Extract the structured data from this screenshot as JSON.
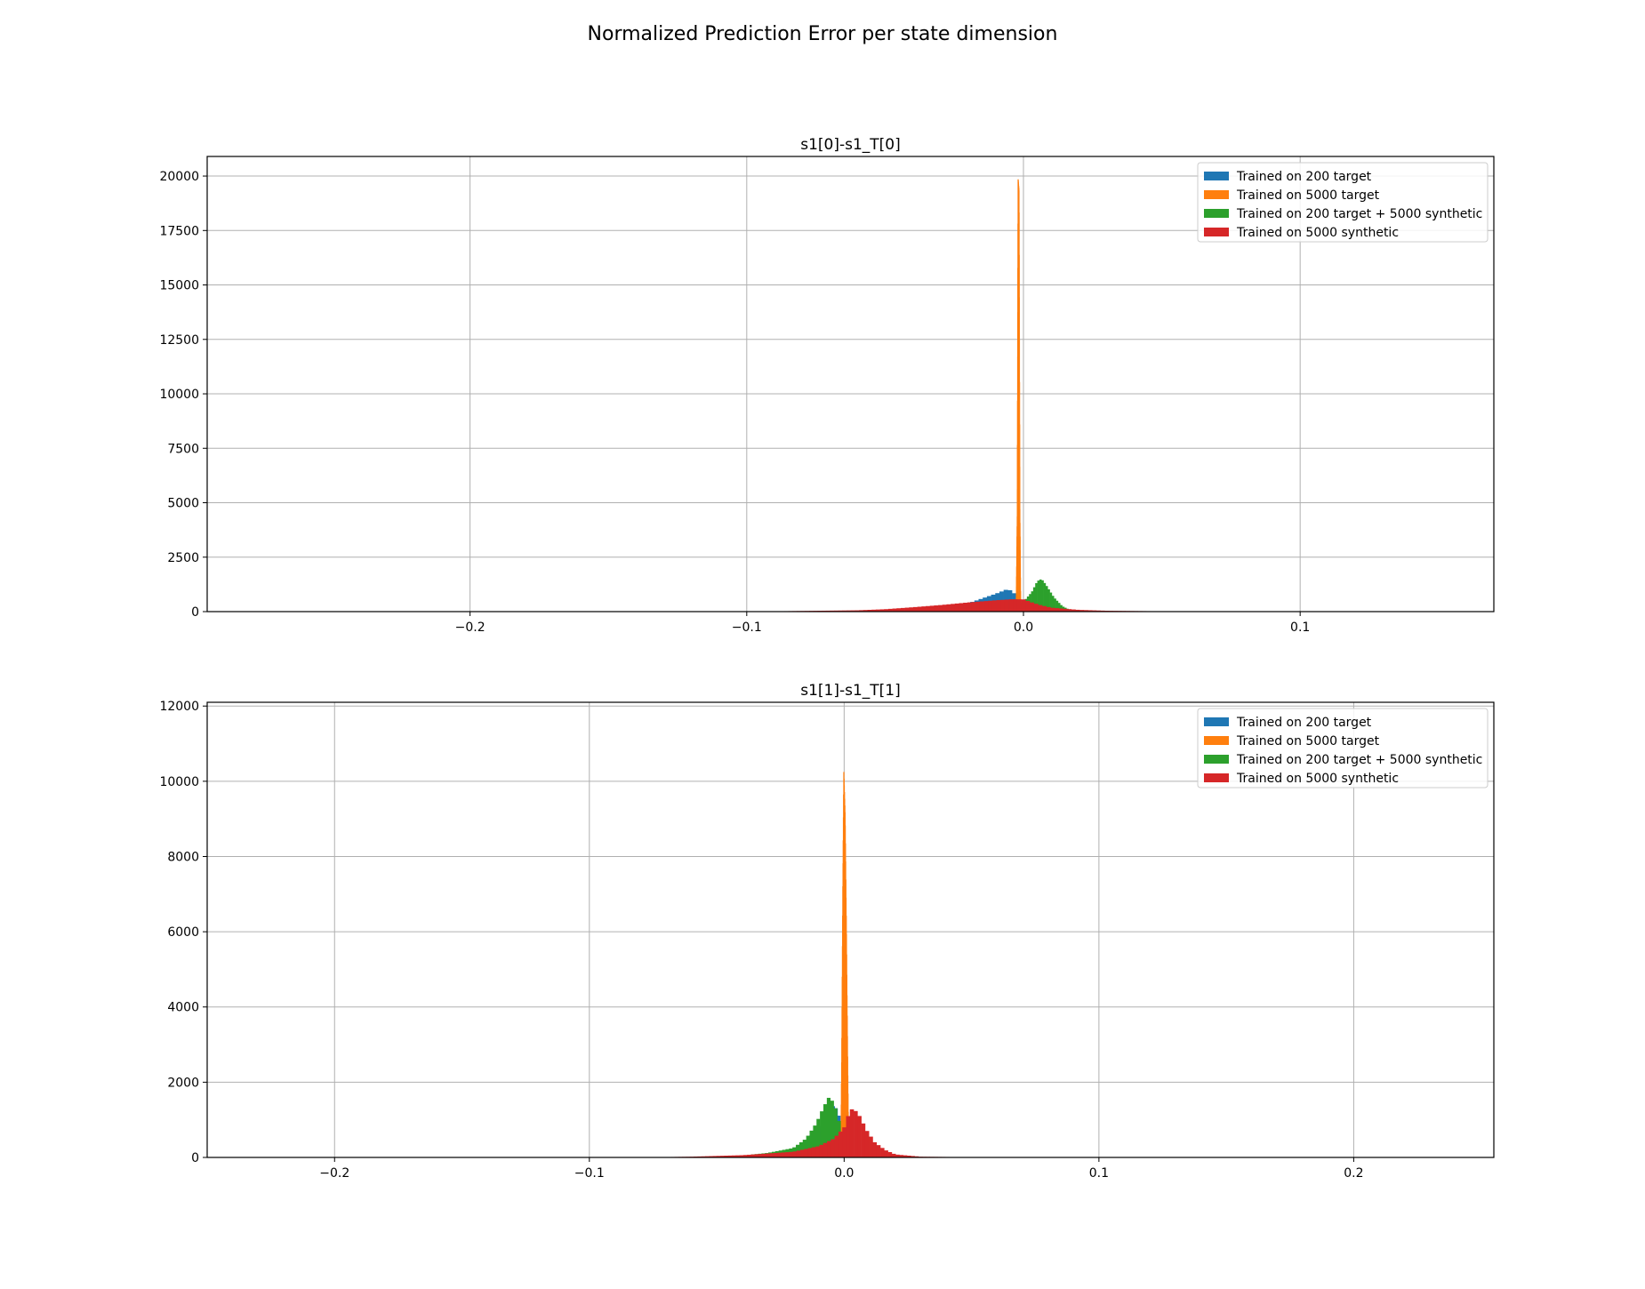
{
  "figure": {
    "suptitle": "Normalized Prediction Error per state dimension"
  },
  "chart_data": [
    {
      "type": "histogram",
      "title": "s1[0]-s1_T[0]",
      "xlabel": "",
      "ylabel": "",
      "xlim": [
        -0.295,
        0.17
      ],
      "ylim": [
        0,
        20900
      ],
      "xticks": [
        -0.2,
        -0.1,
        0.0,
        0.1
      ],
      "xtick_labels": [
        "−0.2",
        "−0.1",
        "0.0",
        "0.1"
      ],
      "yticks": [
        0,
        2500,
        5000,
        7500,
        10000,
        12500,
        15000,
        17500,
        20000
      ],
      "ytick_labels": [
        "0",
        "2500",
        "5000",
        "7500",
        "10000",
        "12500",
        "15000",
        "17500",
        "20000"
      ],
      "grid": true,
      "legend_position": "top-right",
      "series": [
        {
          "name": "Trained on 200 target",
          "color": "#1f77b4",
          "points": [
            [
              -0.06,
              0
            ],
            [
              -0.04,
              40
            ],
            [
              -0.03,
              150
            ],
            [
              -0.02,
              380
            ],
            [
              -0.015,
              600
            ],
            [
              -0.01,
              820
            ],
            [
              -0.006,
              1020
            ],
            [
              -0.004,
              950
            ],
            [
              -0.002,
              600
            ],
            [
              0.0,
              300
            ],
            [
              0.005,
              120
            ],
            [
              0.01,
              30
            ],
            [
              0.02,
              0
            ]
          ]
        },
        {
          "name": "Trained on 5000 target",
          "color": "#ff7f0e",
          "points": [
            [
              -0.0028,
              0
            ],
            [
              -0.0024,
              4600
            ],
            [
              -0.0021,
              19850
            ],
            [
              -0.0018,
              19300
            ],
            [
              -0.0015,
              4700
            ],
            [
              -0.0012,
              0
            ]
          ]
        },
        {
          "name": "Trained on 200 target + 5000 synthetic",
          "color": "#2ca02c",
          "points": [
            [
              -0.01,
              0
            ],
            [
              -0.004,
              200
            ],
            [
              0.0,
              450
            ],
            [
              0.003,
              900
            ],
            [
              0.005,
              1400
            ],
            [
              0.0065,
              1500
            ],
            [
              0.008,
              1250
            ],
            [
              0.011,
              650
            ],
            [
              0.014,
              250
            ],
            [
              0.017,
              60
            ],
            [
              0.02,
              0
            ]
          ]
        },
        {
          "name": "Trained on 5000 synthetic",
          "color": "#d62728",
          "points": [
            [
              -0.1,
              0
            ],
            [
              -0.08,
              30
            ],
            [
              -0.06,
              60
            ],
            [
              -0.05,
              110
            ],
            [
              -0.04,
              200
            ],
            [
              -0.03,
              300
            ],
            [
              -0.02,
              420
            ],
            [
              -0.01,
              520
            ],
            [
              -0.004,
              570
            ],
            [
              0.0,
              560
            ],
            [
              0.003,
              420
            ],
            [
              0.006,
              300
            ],
            [
              0.01,
              180
            ],
            [
              0.02,
              80
            ],
            [
              0.03,
              40
            ],
            [
              0.05,
              15
            ],
            [
              0.07,
              5
            ],
            [
              0.1,
              0
            ]
          ]
        }
      ]
    },
    {
      "type": "histogram",
      "title": "s1[1]-s1_T[1]",
      "xlabel": "",
      "ylabel": "",
      "xlim": [
        -0.25,
        0.255
      ],
      "ylim": [
        0,
        12100
      ],
      "xticks": [
        -0.2,
        -0.1,
        0.0,
        0.1,
        0.2
      ],
      "xtick_labels": [
        "−0.2",
        "−0.1",
        "0.0",
        "0.1",
        "0.2"
      ],
      "yticks": [
        0,
        2000,
        4000,
        6000,
        8000,
        10000,
        12000
      ],
      "ytick_labels": [
        "0",
        "2000",
        "4000",
        "6000",
        "8000",
        "10000",
        "12000"
      ],
      "grid": true,
      "legend_position": "top-right",
      "series": [
        {
          "name": "Trained on 200 target",
          "color": "#1f77b4",
          "points": [
            [
              -0.04,
              0
            ],
            [
              -0.03,
              80
            ],
            [
              -0.02,
              200
            ],
            [
              -0.015,
              450
            ],
            [
              -0.01,
              800
            ],
            [
              -0.007,
              1200
            ],
            [
              -0.005,
              1400
            ],
            [
              -0.003,
              1300
            ],
            [
              -0.001,
              900
            ],
            [
              0.001,
              300
            ],
            [
              0.004,
              0
            ]
          ]
        },
        {
          "name": "Trained on 5000 target",
          "color": "#ff7f0e",
          "points": [
            [
              -0.0015,
              0
            ],
            [
              -0.0011,
              2900
            ],
            [
              -0.0007,
              7100
            ],
            [
              -0.0003,
              10250
            ],
            [
              0.0002,
              9100
            ],
            [
              0.0007,
              6000
            ],
            [
              0.0012,
              2500
            ],
            [
              0.0016,
              0
            ]
          ]
        },
        {
          "name": "Trained on 200 target + 5000 synthetic",
          "color": "#2ca02c",
          "points": [
            [
              -0.05,
              0
            ],
            [
              -0.04,
              50
            ],
            [
              -0.03,
              120
            ],
            [
              -0.02,
              250
            ],
            [
              -0.015,
              500
            ],
            [
              -0.011,
              900
            ],
            [
              -0.008,
              1350
            ],
            [
              -0.006,
              1600
            ],
            [
              -0.004,
              1450
            ],
            [
              -0.002,
              950
            ],
            [
              0.0,
              400
            ],
            [
              0.002,
              100
            ],
            [
              0.004,
              0
            ]
          ]
        },
        {
          "name": "Trained on 5000 synthetic",
          "color": "#d62728",
          "points": [
            [
              -0.08,
              0
            ],
            [
              -0.06,
              20
            ],
            [
              -0.04,
              60
            ],
            [
              -0.02,
              150
            ],
            [
              -0.01,
              300
            ],
            [
              -0.004,
              500
            ],
            [
              0.0,
              800
            ],
            [
              0.002,
              1200
            ],
            [
              0.0035,
              1320
            ],
            [
              0.006,
              1100
            ],
            [
              0.009,
              700
            ],
            [
              0.012,
              400
            ],
            [
              0.016,
              200
            ],
            [
              0.02,
              80
            ],
            [
              0.03,
              20
            ],
            [
              0.05,
              5
            ],
            [
              0.08,
              0
            ]
          ]
        }
      ]
    }
  ]
}
